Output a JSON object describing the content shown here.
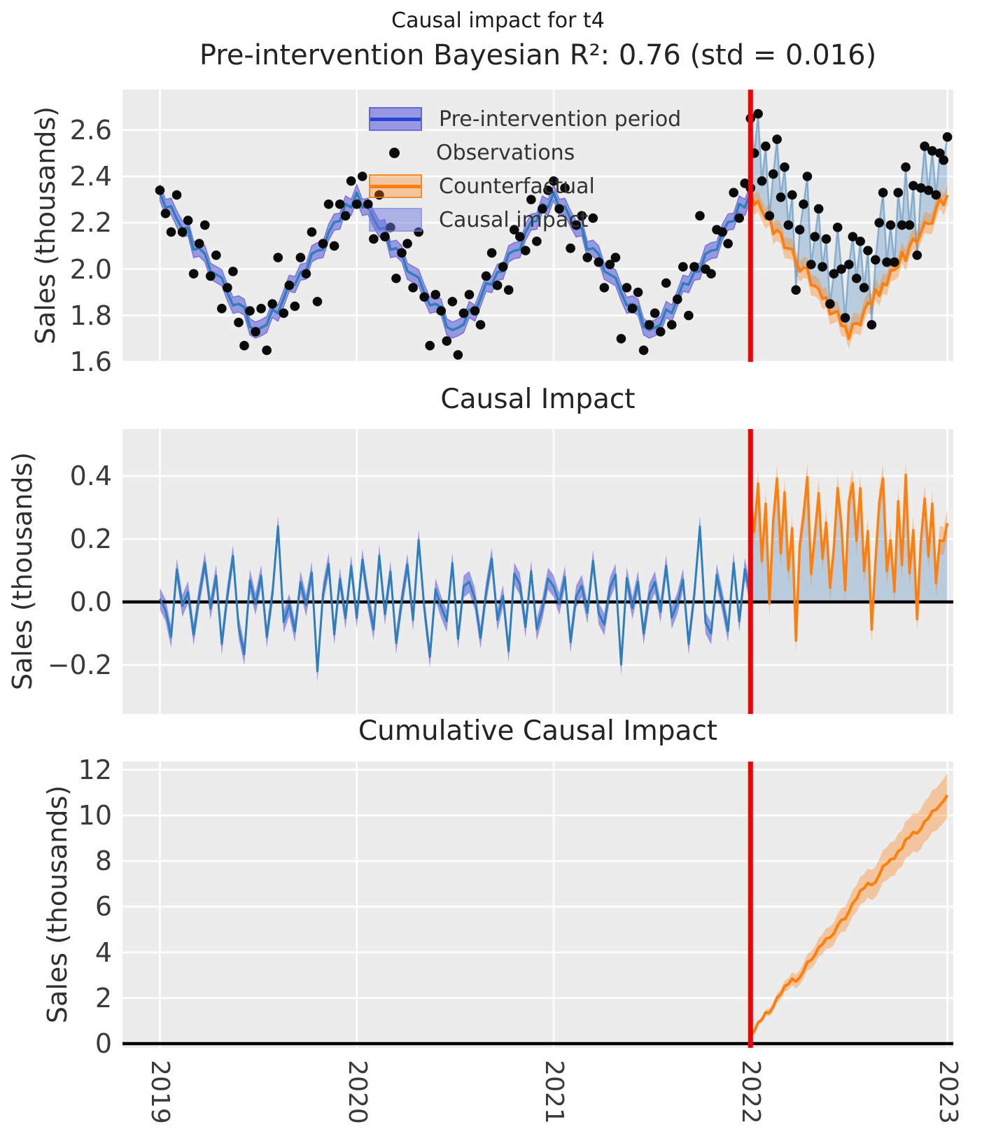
{
  "figure": {
    "suptitle": "Causal impact for t4"
  },
  "panel1": {
    "title": "Pre-intervention Bayesian R²: 0.76 (std = 0.016)",
    "ylabel": "Sales (thousands)",
    "yticks": [
      "2.6",
      "2.4",
      "2.2",
      "2.0",
      "1.8",
      "1.6"
    ],
    "ytick_values": [
      2.6,
      2.4,
      2.2,
      2.0,
      1.8,
      1.6
    ]
  },
  "panel2": {
    "title": "Causal Impact",
    "ylabel": "Sales (thousands)",
    "yticks": [
      "0.4",
      "0.2",
      "0.0",
      "−0.2"
    ],
    "ytick_values": [
      0.4,
      0.2,
      0.0,
      -0.2
    ]
  },
  "panel3": {
    "title": "Cumulative Causal Impact",
    "ylabel": "Sales (thousands)",
    "yticks": [
      "12",
      "10",
      "8",
      "6",
      "4",
      "2",
      "0"
    ],
    "ytick_values": [
      12,
      10,
      8,
      6,
      4,
      2,
      0
    ]
  },
  "xaxis": {
    "tick_labels": [
      "2019",
      "2020",
      "2021",
      "2022",
      "2023"
    ],
    "tick_values": [
      2019,
      2020,
      2021,
      2022,
      2023
    ]
  },
  "legend": [
    "Pre-intervention period",
    "Observations",
    "Counterfactual",
    "Causal impact"
  ],
  "colors": {
    "pre_line": "#2e7dbc",
    "pre_band": "rgba(83,84,218,0.55)",
    "pre_band_edge": "rgba(62,62,205,0.55)",
    "legend_pre_line": "#2742d6",
    "counterfactual_line": "#ff7f0e",
    "counterfactual_band": "rgba(255,127,14,0.35)",
    "impact_fill": "rgba(49,119,180,0.27)",
    "impact_fill_legend": "rgba(106,116,222,0.5)",
    "observation_dot": "#0a0a0a",
    "observation_line": "rgba(49,119,180,0.45)",
    "intervention_line": "#f40000",
    "zero_line": "#000000",
    "panel_bg": "#ececec",
    "grid": "#ffffff"
  },
  "chart_data": {
    "type": "line",
    "title": "Causal impact for t4",
    "subplot_titles": [
      "Pre-intervention Bayesian R²: 0.76 (std = 0.016)",
      "Causal Impact",
      "Cumulative Causal Impact"
    ],
    "xlabel": "",
    "ylabel": "Sales (thousands)",
    "x_range": [
      2018.81,
      2023.03
    ],
    "panel1_ylim": [
      1.6,
      2.77
    ],
    "panel2_ylim": [
      -0.35,
      0.55
    ],
    "panel3_ylim": [
      -0.2,
      12.4
    ],
    "grid": true,
    "legend_position": "upper-center-left",
    "intervention_x": 2022,
    "r_squared": 0.76,
    "r_squared_std": 0.016,
    "pre": {
      "x_start": 2019.0,
      "x_step": 0.02857142857,
      "n": 106,
      "model_band_halfwidth": 0.035,
      "observations": [
        2.34,
        2.24,
        2.16,
        2.32,
        2.16,
        2.21,
        1.98,
        2.11,
        2.19,
        1.97,
        2.06,
        1.83,
        1.92,
        1.99,
        1.77,
        1.67,
        1.82,
        1.73,
        1.83,
        1.65,
        1.85,
        2.05,
        1.81,
        1.93,
        1.84,
        2.05,
        1.98,
        2.16,
        1.86,
        2.11,
        2.28,
        2.1,
        2.28,
        2.23,
        2.38,
        2.28,
        2.4,
        2.28,
        2.13,
        2.32,
        2.14,
        2.18,
        1.96,
        2.07,
        2.11,
        1.92,
        2.16,
        1.88,
        1.67,
        1.89,
        1.82,
        1.69,
        1.86,
        1.63,
        1.81,
        1.89,
        1.82,
        1.76,
        1.97,
        2.07,
        1.93,
        2.01,
        1.91,
        2.17,
        2.14,
        2.08,
        2.3,
        2.12,
        2.26,
        2.34,
        2.38,
        2.26,
        2.35,
        2.09,
        2.19,
        2.23,
        2.05,
        2.22,
        2.03,
        1.92,
        2.02,
        2.05,
        1.7,
        1.92,
        1.83,
        1.9,
        1.65,
        1.76,
        1.81,
        1.73,
        1.94,
        1.76,
        1.87,
        2.01,
        1.8,
        2.01,
        2.23,
        2.0,
        1.98,
        2.17,
        2.16,
        2.11,
        2.33,
        2.22,
        2.37,
        2.35
      ],
      "model_mean": [
        2.33,
        2.266,
        2.271,
        2.217,
        2.173,
        2.179,
        2.084,
        2.09,
        2.066,
        1.991,
        1.977,
        1.963,
        1.899,
        1.844,
        1.85,
        1.836,
        1.751,
        1.737,
        1.747,
        1.761,
        1.826,
        1.81,
        1.874,
        1.939,
        1.933,
        1.987,
        1.991,
        2.066,
        2.08,
        2.084,
        2.159,
        2.203,
        2.207,
        2.281,
        2.266,
        2.33,
        2.266,
        2.271,
        2.217,
        2.173,
        2.179,
        2.084,
        2.09,
        2.066,
        1.991,
        1.977,
        1.963,
        1.899,
        1.844,
        1.85,
        1.836,
        1.751,
        1.737,
        1.747,
        1.761,
        1.826,
        1.81,
        1.874,
        1.939,
        1.933,
        1.987,
        1.991,
        2.066,
        2.08,
        2.084,
        2.159,
        2.203,
        2.207,
        2.281,
        2.266,
        2.33,
        2.266,
        2.271,
        2.217,
        2.173,
        2.179,
        2.084,
        2.09,
        2.066,
        1.991,
        1.977,
        1.963,
        1.899,
        1.844,
        1.85,
        1.836,
        1.751,
        1.737,
        1.747,
        1.761,
        1.826,
        1.81,
        1.874,
        1.939,
        1.933,
        1.987,
        1.991,
        2.066,
        2.08,
        2.084,
        2.159,
        2.203,
        2.207,
        2.281,
        2.266,
        2.33
      ]
    },
    "post": {
      "x_start": 2022.0,
      "x_step": 0.01923076923,
      "n": 53,
      "counterfactual_band_halfwidth": 0.045,
      "observations": [
        2.65,
        2.5,
        2.67,
        2.38,
        2.53,
        2.23,
        2.41,
        2.56,
        2.31,
        2.44,
        2.19,
        2.32,
        1.91,
        2.17,
        2.28,
        2.4,
        2.02,
        2.14,
        2.26,
        2.01,
        2.13,
        1.85,
        1.98,
        2.18,
        2.0,
        1.79,
        2.02,
        2.14,
        1.96,
        2.12,
        1.92,
        2.08,
        1.76,
        2.04,
        2.2,
        2.33,
        2.03,
        2.19,
        2.03,
        2.33,
        2.19,
        2.44,
        2.19,
        2.36,
        2.06,
        2.35,
        2.53,
        2.34,
        2.51,
        2.32,
        2.5,
        2.47,
        2.57
      ],
      "counterfactual_mean": [
        2.33,
        2.277,
        2.294,
        2.251,
        2.218,
        2.235,
        2.152,
        2.168,
        2.155,
        2.092,
        2.089,
        2.086,
        2.033,
        1.99,
        2.007,
        2.004,
        1.931,
        1.928,
        1.915,
        1.872,
        1.878,
        1.805,
        1.812,
        1.819,
        1.756,
        1.753,
        1.7,
        1.763,
        1.766,
        1.759,
        1.822,
        1.855,
        1.848,
        1.912,
        1.885,
        1.938,
        1.931,
        1.994,
        1.997,
        2.01,
        2.073,
        2.036,
        2.099,
        2.132,
        2.115,
        2.158,
        2.202,
        2.195,
        2.198,
        2.261,
        2.304,
        2.277,
        2.32
      ]
    }
  }
}
